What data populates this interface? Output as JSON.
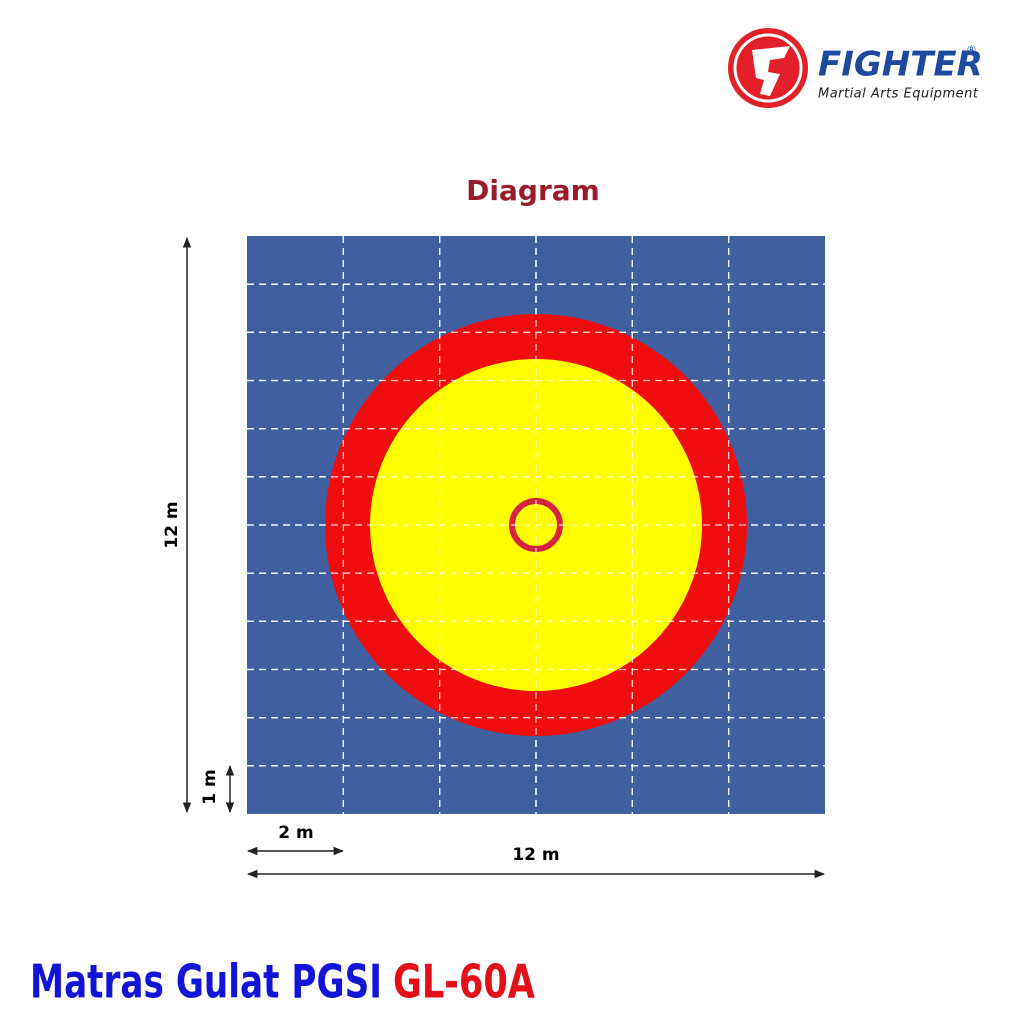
{
  "logo": {
    "brand": "FIGHTER",
    "registered": "®",
    "tagline": "Martial Arts Equipment"
  },
  "diagram": {
    "heading": "Diagram",
    "height_label": "12 m",
    "row_label": "1 m",
    "column_label": "2 m",
    "width_label": "12 m"
  },
  "footer": {
    "title": "Matras Gulat PGSI",
    "model": "GL-60A"
  }
}
